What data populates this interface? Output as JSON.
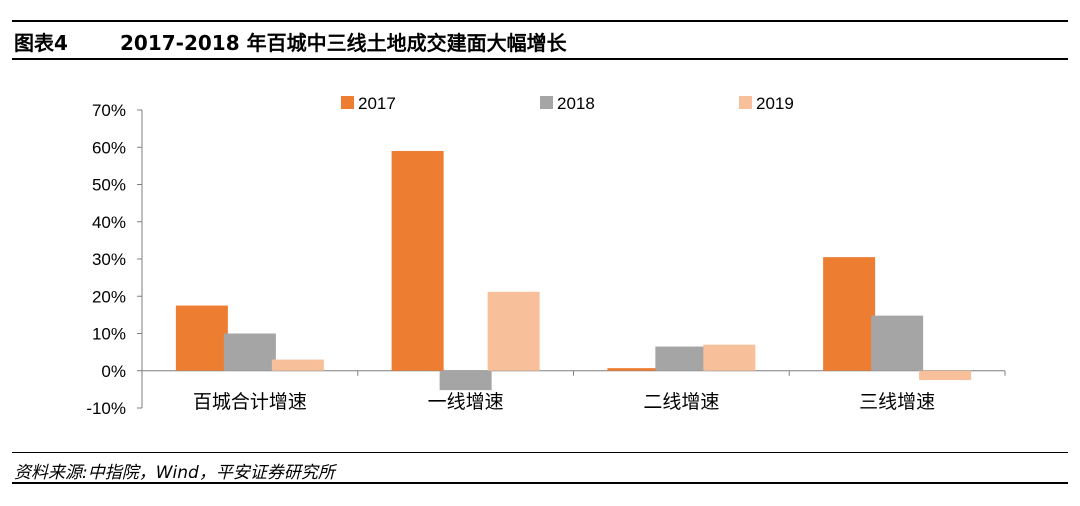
{
  "header": {
    "figure_label": "图表4",
    "title": "2017-2018 年百城中三线土地成交建面大幅增长"
  },
  "footer": {
    "source": "资料来源:中指院，Wind，平安证券研究所"
  },
  "chart_data": {
    "type": "bar",
    "categories": [
      "百城合计增速",
      "一线增速",
      "二线增速",
      "三线增速"
    ],
    "series": [
      {
        "name": "2017",
        "color": "#ED7D31",
        "values": [
          17.5,
          59.0,
          0.7,
          30.5
        ]
      },
      {
        "name": "2018",
        "color": "#A5A5A5",
        "values": [
          10.0,
          -5.2,
          6.5,
          14.8
        ]
      },
      {
        "name": "2019",
        "color": "#F8C09A",
        "values": [
          3.0,
          21.2,
          7.0,
          -2.5
        ]
      }
    ],
    "ylim": [
      -10,
      70
    ],
    "yticks": [
      "-10%",
      "0%",
      "10%",
      "20%",
      "30%",
      "40%",
      "50%",
      "60%",
      "70%"
    ],
    "ytick_values": [
      -10,
      0,
      10,
      20,
      30,
      40,
      50,
      60,
      70
    ],
    "legend_position": "top",
    "grid": false
  }
}
